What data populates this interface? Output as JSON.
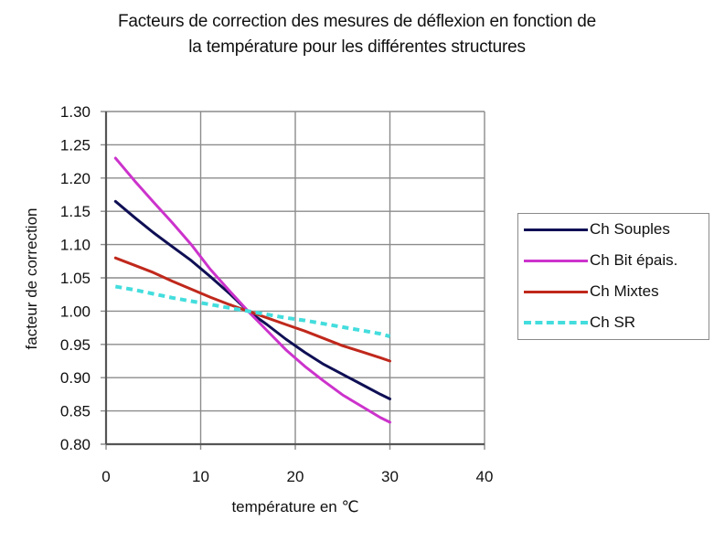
{
  "title": {
    "line1": "Facteurs de correction des mesures de déflexion en fonction de",
    "line2": "la température pour les différentes structures"
  },
  "axes": {
    "xlabel": "température en ℃",
    "ylabel": "facteur de correction",
    "xticks": [
      "0",
      "10",
      "20",
      "30",
      "40"
    ],
    "yticks": [
      "0.80",
      "0.85",
      "0.90",
      "0.95",
      "1.00",
      "1.05",
      "1.10",
      "1.15",
      "1.20",
      "1.25",
      "1.30"
    ]
  },
  "legend": {
    "items": [
      {
        "label": "Ch Souples",
        "color": "#0f0f55",
        "dashed": false
      },
      {
        "label": "Ch Bit épais.",
        "color": "#cc33cc",
        "dashed": false
      },
      {
        "label": "Ch Mixtes",
        "color": "#c0281c",
        "dashed": false
      },
      {
        "label": "Ch SR",
        "color": "#44dddd",
        "dashed": true
      }
    ]
  },
  "chart_data": {
    "type": "line",
    "title": "Facteurs de correction des mesures de déflexion en fonction de la température pour les différentes structures",
    "xlabel": "température en ℃",
    "ylabel": "facteur de correction",
    "xlim": [
      0,
      40
    ],
    "ylim": [
      0.8,
      1.3
    ],
    "xticks": [
      0,
      10,
      20,
      30,
      40
    ],
    "yticks": [
      0.8,
      0.85,
      0.9,
      0.95,
      1.0,
      1.05,
      1.1,
      1.15,
      1.2,
      1.25,
      1.3
    ],
    "grid": true,
    "legend_position": "right",
    "x": [
      1,
      3,
      5,
      7,
      9,
      11,
      13,
      15,
      17,
      19,
      21,
      23,
      25,
      27,
      29,
      30
    ],
    "series": [
      {
        "name": "Ch Souples",
        "color": "#0f0f55",
        "style": "solid",
        "values": [
          1.165,
          1.141,
          1.118,
          1.097,
          1.076,
          1.052,
          1.027,
          1.0,
          0.98,
          0.958,
          0.938,
          0.92,
          0.905,
          0.89,
          0.875,
          0.868
        ]
      },
      {
        "name": "Ch Bit épais.",
        "color": "#cc33cc",
        "style": "solid",
        "values": [
          1.23,
          1.196,
          1.164,
          1.133,
          1.1,
          1.063,
          1.031,
          1.0,
          0.971,
          0.942,
          0.917,
          0.895,
          0.874,
          0.857,
          0.84,
          0.833
        ]
      },
      {
        "name": "Ch Mixtes",
        "color": "#c0281c",
        "style": "solid",
        "values": [
          1.08,
          1.069,
          1.058,
          1.045,
          1.033,
          1.021,
          1.01,
          1.0,
          0.99,
          0.98,
          0.97,
          0.959,
          0.948,
          0.939,
          0.93,
          0.925
        ]
      },
      {
        "name": "Ch SR",
        "color": "#44dddd",
        "style": "dashed",
        "values": [
          1.037,
          1.032,
          1.026,
          1.02,
          1.015,
          1.01,
          1.005,
          1.0,
          0.995,
          0.99,
          0.986,
          0.981,
          0.976,
          0.971,
          0.966,
          0.962
        ]
      }
    ]
  }
}
